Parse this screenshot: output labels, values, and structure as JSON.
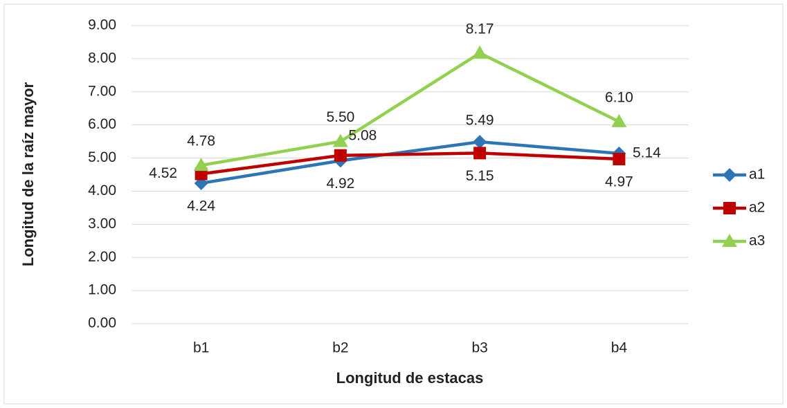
{
  "chart_data": {
    "type": "line",
    "x_label": "Longitud de estacas",
    "y_label": "Longitud de la raíz mayor",
    "categories": [
      "b1",
      "b2",
      "b3",
      "b4"
    ],
    "series": [
      {
        "name": "a1",
        "color": "#2e75b6",
        "marker": "diamond",
        "values": [
          4.24,
          4.92,
          5.49,
          5.14
        ],
        "value_labels": [
          "4.24",
          "4.92",
          "5.49",
          "5.14"
        ]
      },
      {
        "name": "a2",
        "color": "#c00000",
        "marker": "square",
        "values": [
          4.52,
          5.08,
          5.15,
          4.97
        ],
        "value_labels": [
          "4.52",
          "5.08",
          "5.15",
          "4.97"
        ]
      },
      {
        "name": "a3",
        "color": "#92d050",
        "marker": "triangle",
        "values": [
          4.78,
          5.5,
          8.17,
          6.1
        ],
        "value_labels": [
          "4.78",
          "5.50",
          "8.17",
          "6.10"
        ]
      }
    ],
    "ylim": [
      0,
      9
    ],
    "yticks": [
      {
        "value": 0,
        "label": "0.00"
      },
      {
        "value": 1,
        "label": "1.00"
      },
      {
        "value": 2,
        "label": "2.00"
      },
      {
        "value": 3,
        "label": "3.00"
      },
      {
        "value": 4,
        "label": "4.00"
      },
      {
        "value": 5,
        "label": "5.00"
      },
      {
        "value": 6,
        "label": "6.00"
      },
      {
        "value": 7,
        "label": "7.00"
      },
      {
        "value": 8,
        "label": "8.00"
      },
      {
        "value": 9,
        "label": "9.00"
      }
    ],
    "grid": true,
    "legend": "right"
  }
}
